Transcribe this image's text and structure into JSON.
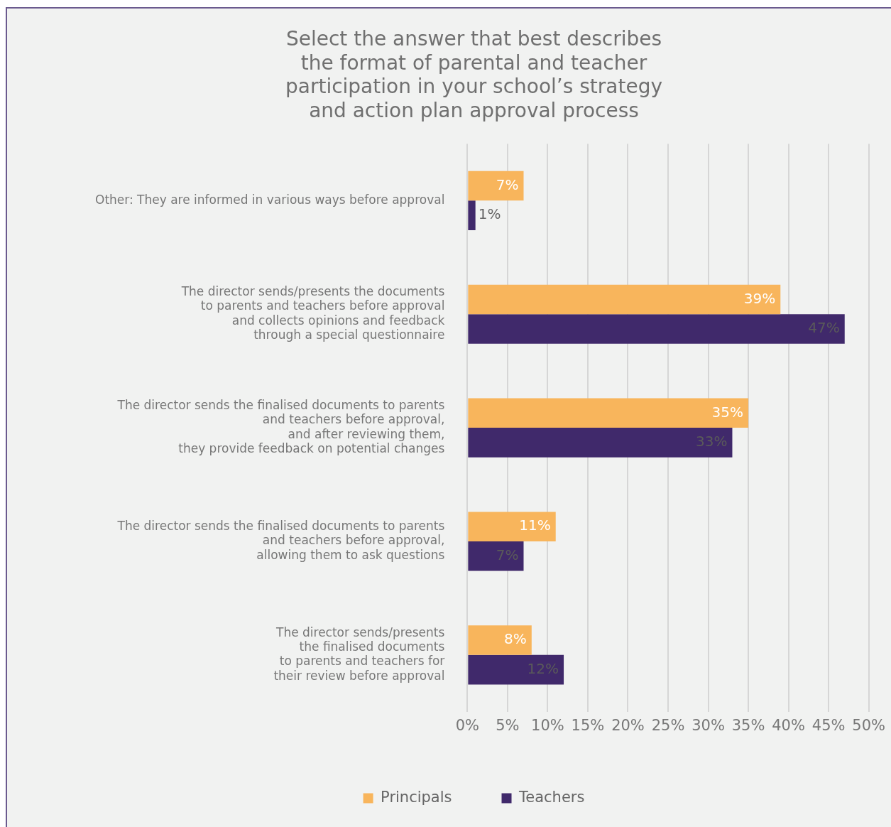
{
  "chart_data": {
    "type": "bar",
    "orientation": "horizontal",
    "title": "Select the answer that best describes\nthe format of parental and teacher\nparticipation in your school’s strategy\nand action plan approval process",
    "categories": [
      "Other: They are informed in various ways before approval",
      "The director sends/presents the documents\nto parents and teachers before approval\nand collects opinions and feedback\nthrough a special questionnaire",
      "The director sends the finalised documents to parents\nand teachers before approval,\nand after reviewing them,\nthey provide feedback on potential changes",
      "The director sends the finalised documents to parents\nand teachers before approval,\nallowing them to ask questions",
      "The director sends/presents\nthe finalised documents\nto parents and teachers for\ntheir review before approval"
    ],
    "series": [
      {
        "name": "Principals",
        "color": "#f8b55c",
        "values": [
          7,
          39,
          35,
          11,
          8
        ],
        "value_labels": [
          "7%",
          "39%",
          "35%",
          "11%",
          "8%"
        ]
      },
      {
        "name": "Teachers",
        "color": "#40296b",
        "values": [
          1,
          47,
          33,
          7,
          12
        ],
        "value_labels": [
          "1%",
          "47%",
          "33%",
          "7%",
          "12%"
        ]
      }
    ],
    "xlim": [
      0,
      50
    ],
    "xticks": [
      {
        "value": 0,
        "label": "0%"
      },
      {
        "value": 5,
        "label": "5%"
      },
      {
        "value": 10,
        "label": "10%"
      },
      {
        "value": 15,
        "label": "15%"
      },
      {
        "value": 20,
        "label": "20%"
      },
      {
        "value": 25,
        "label": "25%"
      },
      {
        "value": 30,
        "label": "30%"
      },
      {
        "value": 35,
        "label": "35%"
      },
      {
        "value": 40,
        "label": "40%"
      },
      {
        "value": 45,
        "label": "45%"
      },
      {
        "value": 50,
        "label": "50%"
      }
    ],
    "grid": "x",
    "legend": "bottom"
  }
}
